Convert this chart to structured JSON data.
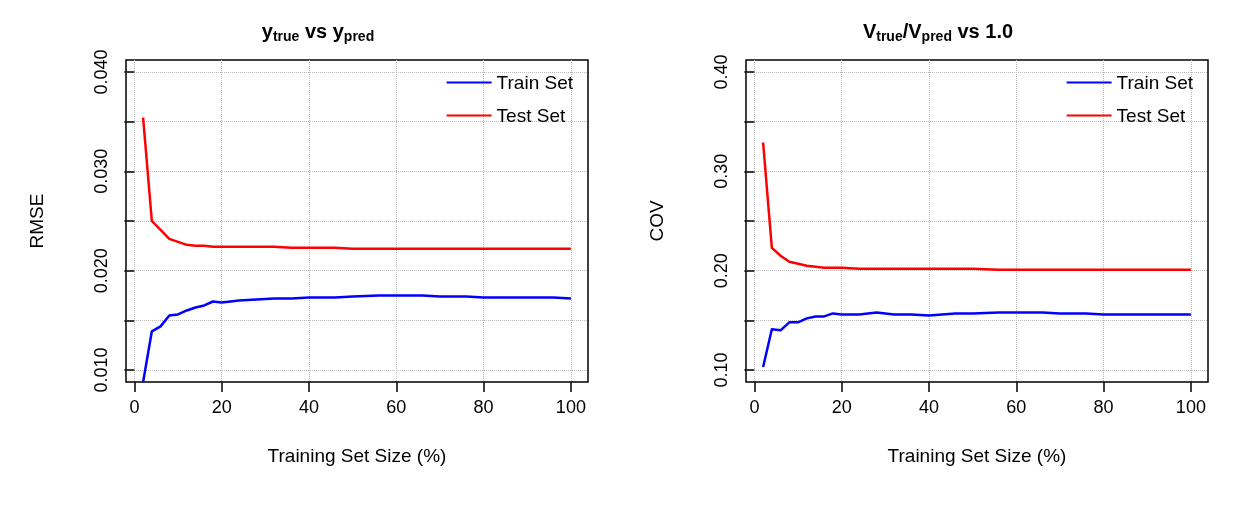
{
  "chart_data": [
    {
      "type": "line",
      "title": "y$_{true}$ vs y$_{pred}$",
      "xlabel": "Training Set Size (%)",
      "ylabel": "RMSE",
      "x": [
        2,
        4,
        6,
        8,
        10,
        12,
        14,
        16,
        18,
        20,
        24,
        28,
        32,
        36,
        40,
        46,
        50,
        56,
        60,
        66,
        70,
        76,
        80,
        86,
        90,
        96,
        100
      ],
      "series": [
        {
          "name": "Train Set",
          "color": "#0000ff",
          "values": [
            0.0088,
            0.0139,
            0.0144,
            0.0155,
            0.0156,
            0.016,
            0.0163,
            0.0165,
            0.0169,
            0.0168,
            0.017,
            0.0171,
            0.0172,
            0.0172,
            0.0173,
            0.0173,
            0.0174,
            0.0175,
            0.0175,
            0.0175,
            0.0174,
            0.0174,
            0.0173,
            0.0173,
            0.0173,
            0.0173,
            0.0172
          ]
        },
        {
          "name": "Test Set",
          "color": "#ff0000",
          "values": [
            0.0354,
            0.025,
            0.0241,
            0.0232,
            0.0229,
            0.0226,
            0.0225,
            0.0225,
            0.0224,
            0.0224,
            0.0224,
            0.0224,
            0.0224,
            0.0223,
            0.0223,
            0.0223,
            0.0222,
            0.0222,
            0.0222,
            0.0222,
            0.0222,
            0.0222,
            0.0222,
            0.0222,
            0.0222,
            0.0222,
            0.0222
          ]
        }
      ],
      "xlim": [
        -1.92,
        103.92
      ],
      "xticks": [
        0,
        20,
        40,
        60,
        80,
        100
      ],
      "ylim": [
        0.0088,
        0.0412
      ],
      "yticks": [
        {
          "value": 0.01,
          "label": "0.010"
        },
        {
          "value": 0.015,
          "label": null
        },
        {
          "value": 0.02,
          "label": "0.020"
        },
        {
          "value": 0.025,
          "label": null
        },
        {
          "value": 0.03,
          "label": "0.030"
        },
        {
          "value": 0.035,
          "label": null
        },
        {
          "value": 0.04,
          "label": "0.040"
        }
      ],
      "grid": true,
      "legend": "top right",
      "marker": "none",
      "line_style": "solid"
    },
    {
      "type": "line",
      "title": "V$_{true}$/V$_{pred}$ vs 1.0",
      "xlabel": "Training Set Size (%)",
      "ylabel": "COV",
      "x": [
        2,
        4,
        6,
        8,
        10,
        12,
        14,
        16,
        18,
        20,
        24,
        28,
        32,
        36,
        40,
        46,
        50,
        56,
        60,
        66,
        70,
        76,
        80,
        86,
        90,
        96,
        100
      ],
      "series": [
        {
          "name": "Train Set",
          "color": "#0000ff",
          "values": [
            0.103,
            0.141,
            0.14,
            0.148,
            0.148,
            0.152,
            0.154,
            0.154,
            0.157,
            0.156,
            0.156,
            0.158,
            0.156,
            0.156,
            0.155,
            0.157,
            0.157,
            0.158,
            0.158,
            0.158,
            0.157,
            0.157,
            0.156,
            0.156,
            0.156,
            0.156,
            0.156
          ]
        },
        {
          "name": "Test Set",
          "color": "#ff0000",
          "values": [
            0.329,
            0.223,
            0.215,
            0.209,
            0.207,
            0.205,
            0.204,
            0.203,
            0.203,
            0.203,
            0.202,
            0.202,
            0.202,
            0.202,
            0.202,
            0.202,
            0.202,
            0.201,
            0.201,
            0.201,
            0.201,
            0.201,
            0.201,
            0.201,
            0.201,
            0.201,
            0.201
          ]
        }
      ],
      "xlim": [
        -1.92,
        103.92
      ],
      "xticks": [
        0,
        20,
        40,
        60,
        80,
        100
      ],
      "ylim": [
        0.088,
        0.412
      ],
      "yticks": [
        {
          "value": 0.1,
          "label": "0.10"
        },
        {
          "value": 0.15,
          "label": null
        },
        {
          "value": 0.2,
          "label": "0.20"
        },
        {
          "value": 0.25,
          "label": null
        },
        {
          "value": 0.3,
          "label": "0.30"
        },
        {
          "value": 0.35,
          "label": null
        },
        {
          "value": 0.4,
          "label": "0.40"
        }
      ],
      "grid": true,
      "legend": "top right",
      "marker": "none",
      "line_style": "solid"
    }
  ]
}
